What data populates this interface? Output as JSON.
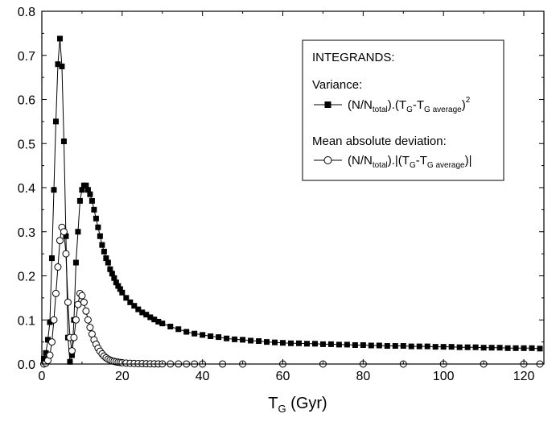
{
  "chart_data": {
    "type": "scatter",
    "xlabel": {
      "main": "T",
      "sub": "G",
      "rest": " (Gyr)"
    },
    "ylabel": "",
    "xlim": [
      0,
      125
    ],
    "ylim": [
      0,
      0.8
    ],
    "xticks": [
      0,
      20,
      40,
      60,
      80,
      100,
      120
    ],
    "xtick_labels": [
      "0",
      "20",
      "40",
      "60",
      "80",
      "100",
      "120"
    ],
    "yticks": [
      0.0,
      0.1,
      0.2,
      0.3,
      0.4,
      0.5,
      0.6,
      0.7,
      0.8
    ],
    "ytick_labels": [
      "0.0",
      "0.1",
      "0.2",
      "0.3",
      "0.4",
      "0.5",
      "0.6",
      "0.7",
      "0.8"
    ],
    "grid": false,
    "legend": {
      "placement": "top-right",
      "title": "INTEGRANDS:",
      "entries": [
        {
          "heading": "Variance:",
          "parts": [
            "(N/N",
            "total",
            ").(T",
            "G",
            "-T",
            "G average",
            ")",
            "2"
          ]
        },
        {
          "heading": "Mean absolute deviation:",
          "parts": [
            "(N/N",
            "total",
            ").|(T",
            "G",
            "-T",
            "G average",
            ")|"
          ]
        }
      ]
    },
    "series": [
      {
        "name": "(N/Ntotal).(TG-TG average)^2",
        "marker": "filled-square",
        "color": "#000000",
        "x": [
          0.5,
          1,
          1.5,
          2,
          2.5,
          3,
          3.5,
          4,
          4.5,
          5,
          5.5,
          6,
          6.5,
          7,
          7.5,
          8,
          8.5,
          9,
          9.5,
          10,
          10.5,
          11,
          11.5,
          12,
          12.5,
          13,
          13.5,
          14,
          14.5,
          15,
          15.5,
          16,
          16.5,
          17,
          17.5,
          18,
          18.5,
          19,
          19.5,
          20,
          21,
          22,
          23,
          24,
          25,
          26,
          27,
          28,
          29,
          30,
          32,
          34,
          36,
          38,
          40,
          42,
          44,
          46,
          48,
          50,
          52,
          54,
          56,
          58,
          60,
          62,
          64,
          66,
          68,
          70,
          72,
          74,
          76,
          78,
          80,
          82,
          84,
          86,
          88,
          90,
          92,
          94,
          96,
          98,
          100,
          102,
          104,
          106,
          108,
          110,
          112,
          114,
          116,
          118,
          120,
          122,
          124
        ],
        "y": [
          0.012,
          0.025,
          0.055,
          0.095,
          0.24,
          0.395,
          0.55,
          0.68,
          0.738,
          0.675,
          0.505,
          0.29,
          0.06,
          0.005,
          0.02,
          0.1,
          0.23,
          0.3,
          0.37,
          0.395,
          0.405,
          0.405,
          0.395,
          0.385,
          0.37,
          0.35,
          0.33,
          0.31,
          0.29,
          0.27,
          0.255,
          0.24,
          0.23,
          0.215,
          0.205,
          0.195,
          0.185,
          0.177,
          0.17,
          0.162,
          0.15,
          0.14,
          0.132,
          0.124,
          0.117,
          0.112,
          0.106,
          0.101,
          0.096,
          0.092,
          0.085,
          0.079,
          0.073,
          0.069,
          0.066,
          0.063,
          0.061,
          0.058,
          0.056,
          0.055,
          0.053,
          0.052,
          0.05,
          0.049,
          0.048,
          0.047,
          0.047,
          0.046,
          0.046,
          0.045,
          0.045,
          0.044,
          0.044,
          0.043,
          0.043,
          0.042,
          0.042,
          0.041,
          0.041,
          0.041,
          0.04,
          0.04,
          0.04,
          0.039,
          0.039,
          0.039,
          0.038,
          0.038,
          0.038,
          0.037,
          0.037,
          0.037,
          0.036,
          0.036,
          0.036,
          0.036,
          0.035
        ]
      },
      {
        "name": "(N/Ntotal).|(TG-TG average)|",
        "marker": "open-circle",
        "color": "#000000",
        "x": [
          0.5,
          1,
          1.5,
          2,
          2.5,
          3,
          3.5,
          4,
          4.5,
          5,
          5.5,
          6,
          6.5,
          7,
          7.5,
          8,
          8.5,
          9,
          9.5,
          10,
          10.5,
          11,
          11.5,
          12,
          12.5,
          13,
          13.5,
          14,
          14.5,
          15,
          15.5,
          16,
          16.5,
          17,
          17.5,
          18,
          18.5,
          19,
          19.5,
          20,
          21,
          22,
          23,
          24,
          25,
          26,
          27,
          28,
          29,
          30,
          32,
          34,
          36,
          38,
          40,
          45,
          50,
          60,
          70,
          80,
          90,
          100,
          110,
          120,
          124
        ],
        "y": [
          0.0,
          0.002,
          0.008,
          0.02,
          0.05,
          0.1,
          0.16,
          0.22,
          0.28,
          0.31,
          0.3,
          0.25,
          0.14,
          0.06,
          0.03,
          0.06,
          0.1,
          0.135,
          0.16,
          0.155,
          0.14,
          0.12,
          0.1,
          0.083,
          0.068,
          0.055,
          0.045,
          0.036,
          0.029,
          0.023,
          0.018,
          0.014,
          0.011,
          0.009,
          0.007,
          0.006,
          0.005,
          0.004,
          0.0035,
          0.003,
          0.002,
          0.0016,
          0.0012,
          0.001,
          0.0008,
          0.0006,
          0.0005,
          0.0004,
          0.0003,
          0.0003,
          0.0002,
          0.0002,
          0.0001,
          0.0001,
          0.0001,
          0.0001,
          0.0,
          0.0,
          0.0,
          0.0,
          0.0,
          0.0,
          0.0,
          0.0,
          0.0
        ]
      }
    ]
  }
}
